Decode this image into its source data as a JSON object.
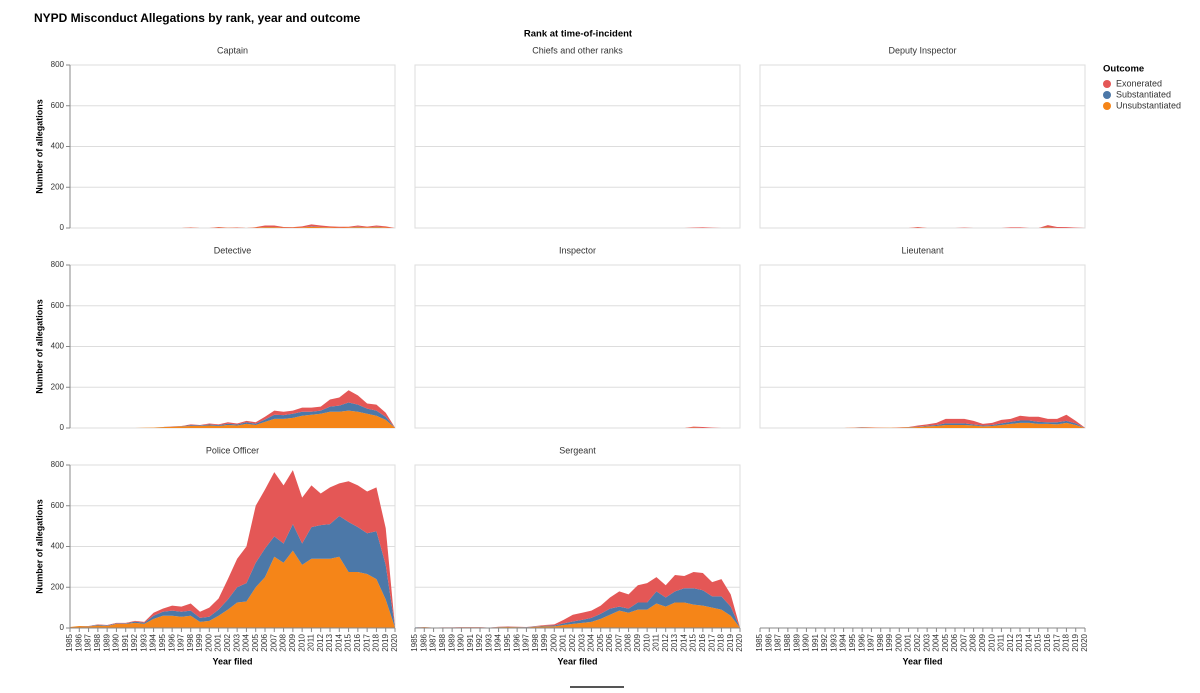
{
  "chart_data": {
    "type": "area",
    "title": "NYPD Misconduct Allegations by rank, year and outcome",
    "facet_title": "Rank at time-of-incident",
    "x_label": "Year filed",
    "y_label": "Number of allegations",
    "legend_title": "Outcome",
    "legend": "right",
    "grid": true,
    "x": [
      1985,
      1986,
      1987,
      1988,
      1989,
      1990,
      1991,
      1992,
      1993,
      1994,
      1995,
      1996,
      1997,
      1998,
      1999,
      2000,
      2001,
      2002,
      2003,
      2004,
      2005,
      2006,
      2007,
      2008,
      2009,
      2010,
      2011,
      2012,
      2013,
      2014,
      2015,
      2016,
      2017,
      2018,
      2019,
      2020
    ],
    "xlim": [
      1985,
      2020
    ],
    "ylim": [
      0,
      800
    ],
    "yticks": [
      0,
      200,
      400,
      600,
      800
    ],
    "facets": [
      {
        "title": "Captain",
        "series": [
          {
            "name": "Exonerated",
            "color": "#e45756",
            "values": [
              0,
              0,
              0,
              0,
              0,
              0,
              0,
              0,
              0,
              0,
              0,
              0,
              0,
              2,
              0,
              0,
              3,
              1,
              2,
              0,
              2,
              7,
              7,
              3,
              2,
              5,
              10,
              7,
              5,
              4,
              3,
              6,
              4,
              6,
              5,
              0
            ]
          },
          {
            "name": "Substantiated",
            "color": "#4c78a8",
            "values": [
              0,
              0,
              0,
              0,
              0,
              0,
              0,
              0,
              0,
              0,
              0,
              0,
              0,
              0,
              0,
              0,
              0,
              0,
              0,
              0,
              0,
              1,
              1,
              0,
              0,
              0,
              2,
              1,
              0,
              0,
              0,
              2,
              0,
              2,
              0,
              0
            ]
          },
          {
            "name": "Unsubstantiated",
            "color": "#f58518",
            "values": [
              0,
              0,
              0,
              0,
              0,
              0,
              0,
              0,
              0,
              0,
              0,
              0,
              0,
              1,
              0,
              0,
              2,
              1,
              1,
              0,
              2,
              4,
              4,
              2,
              2,
              3,
              6,
              4,
              3,
              2,
              3,
              4,
              3,
              4,
              3,
              0
            ]
          }
        ]
      },
      {
        "title": "Chiefs and other ranks",
        "series": [
          {
            "name": "Exonerated",
            "color": "#e45756",
            "values": [
              0,
              0,
              0,
              0,
              0,
              0,
              0,
              0,
              0,
              0,
              0,
              0,
              0,
              0,
              0,
              0,
              0,
              0,
              0,
              0,
              0,
              0,
              0,
              0,
              0,
              0,
              0,
              0,
              0,
              0,
              2,
              3,
              1,
              0,
              0,
              0
            ]
          },
          {
            "name": "Substantiated",
            "color": "#4c78a8",
            "values": [
              0,
              0,
              0,
              0,
              0,
              0,
              0,
              0,
              0,
              0,
              0,
              0,
              0,
              0,
              0,
              0,
              0,
              0,
              0,
              0,
              0,
              0,
              0,
              0,
              0,
              0,
              0,
              0,
              0,
              0,
              0,
              0,
              0,
              0,
              0,
              0
            ]
          },
          {
            "name": "Unsubstantiated",
            "color": "#f58518",
            "values": [
              0,
              0,
              0,
              0,
              0,
              0,
              0,
              0,
              0,
              0,
              0,
              0,
              0,
              0,
              0,
              0,
              0,
              0,
              0,
              0,
              0,
              0,
              0,
              0,
              0,
              0,
              0,
              0,
              0,
              0,
              0,
              0,
              0,
              0,
              0,
              0
            ]
          }
        ]
      },
      {
        "title": "Deputy Inspector",
        "series": [
          {
            "name": "Exonerated",
            "color": "#e45756",
            "values": [
              0,
              0,
              0,
              0,
              0,
              0,
              0,
              0,
              0,
              0,
              0,
              0,
              0,
              0,
              0,
              0,
              0,
              4,
              0,
              0,
              0,
              0,
              2,
              0,
              0,
              0,
              0,
              3,
              3,
              0,
              0,
              10,
              5,
              4,
              2,
              0
            ]
          },
          {
            "name": "Substantiated",
            "color": "#4c78a8",
            "values": [
              0,
              0,
              0,
              0,
              0,
              0,
              0,
              0,
              0,
              0,
              0,
              0,
              0,
              0,
              0,
              0,
              0,
              0,
              0,
              0,
              0,
              0,
              0,
              0,
              0,
              0,
              0,
              0,
              0,
              0,
              0,
              1,
              0,
              0,
              0,
              0
            ]
          },
          {
            "name": "Unsubstantiated",
            "color": "#f58518",
            "values": [
              0,
              0,
              0,
              0,
              0,
              0,
              0,
              0,
              0,
              0,
              0,
              0,
              0,
              0,
              0,
              0,
              0,
              1,
              0,
              0,
              0,
              0,
              0,
              0,
              0,
              0,
              0,
              0,
              0,
              0,
              0,
              3,
              0,
              0,
              0,
              0
            ]
          }
        ]
      },
      {
        "title": "Detective",
        "series": [
          {
            "name": "Exonerated",
            "color": "#e45756",
            "values": [
              0,
              0,
              0,
              0,
              0,
              0,
              0,
              0,
              0,
              0,
              0,
              1,
              1,
              4,
              2,
              5,
              4,
              7,
              5,
              7,
              7,
              13,
              20,
              17,
              15,
              20,
              20,
              20,
              35,
              40,
              60,
              45,
              25,
              30,
              20,
              1
            ]
          },
          {
            "name": "Substantiated",
            "color": "#4c78a8",
            "values": [
              0,
              0,
              0,
              0,
              0,
              0,
              0,
              0,
              0,
              0,
              1,
              1,
              1,
              4,
              3,
              5,
              4,
              6,
              5,
              8,
              6,
              12,
              20,
              18,
              20,
              20,
              15,
              15,
              25,
              30,
              40,
              35,
              25,
              25,
              15,
              0
            ]
          },
          {
            "name": "Unsubstantiated",
            "color": "#f58518",
            "values": [
              0,
              0,
              0,
              0,
              0,
              0,
              0,
              0,
              1,
              2,
              4,
              6,
              8,
              10,
              10,
              12,
              10,
              15,
              12,
              20,
              15,
              30,
              45,
              45,
              50,
              60,
              65,
              70,
              80,
              80,
              85,
              80,
              70,
              60,
              40,
              1
            ]
          }
        ]
      },
      {
        "title": "Inspector",
        "series": [
          {
            "name": "Exonerated",
            "color": "#e45756",
            "values": [
              0,
              0,
              0,
              0,
              0,
              0,
              0,
              0,
              0,
              0,
              0,
              0,
              0,
              0,
              0,
              0,
              0,
              0,
              0,
              0,
              0,
              0,
              0,
              0,
              0,
              0,
              0,
              0,
              0,
              0,
              5,
              5,
              2,
              0,
              0,
              0
            ]
          },
          {
            "name": "Substantiated",
            "color": "#4c78a8",
            "values": [
              0,
              0,
              0,
              0,
              0,
              0,
              0,
              0,
              0,
              0,
              0,
              0,
              0,
              0,
              0,
              0,
              0,
              0,
              0,
              0,
              0,
              0,
              0,
              0,
              0,
              0,
              0,
              0,
              0,
              0,
              0,
              0,
              0,
              0,
              0,
              0
            ]
          },
          {
            "name": "Unsubstantiated",
            "color": "#f58518",
            "values": [
              0,
              0,
              0,
              0,
              0,
              0,
              0,
              0,
              0,
              0,
              0,
              0,
              0,
              0,
              0,
              0,
              0,
              0,
              0,
              0,
              0,
              0,
              0,
              0,
              0,
              0,
              0,
              0,
              0,
              0,
              2,
              0,
              0,
              0,
              0,
              0
            ]
          }
        ]
      },
      {
        "title": "Lieutenant",
        "series": [
          {
            "name": "Exonerated",
            "color": "#e45756",
            "values": [
              0,
              0,
              0,
              0,
              0,
              0,
              0,
              0,
              0,
              0,
              1,
              1,
              1,
              1,
              0,
              1,
              1,
              5,
              7,
              10,
              22,
              22,
              22,
              18,
              8,
              10,
              17,
              15,
              23,
              18,
              25,
              17,
              17,
              30,
              12,
              1
            ]
          },
          {
            "name": "Substantiated",
            "color": "#4c78a8",
            "values": [
              0,
              0,
              0,
              0,
              0,
              0,
              0,
              0,
              0,
              0,
              0,
              1,
              0,
              0,
              0,
              0,
              1,
              2,
              3,
              5,
              8,
              8,
              8,
              5,
              4,
              5,
              8,
              10,
              12,
              12,
              10,
              8,
              10,
              10,
              8,
              0
            ]
          },
          {
            "name": "Unsubstantiated",
            "color": "#f58518",
            "values": [
              0,
              0,
              0,
              0,
              0,
              0,
              0,
              0,
              0,
              0,
              1,
              2,
              2,
              1,
              1,
              2,
              3,
              5,
              8,
              10,
              15,
              15,
              15,
              12,
              8,
              10,
              15,
              20,
              25,
              25,
              20,
              20,
              18,
              25,
              15,
              0
            ]
          }
        ]
      },
      {
        "title": "Police Officer",
        "series": [
          {
            "name": "Exonerated",
            "color": "#e45756",
            "values": [
              0,
              0,
              1,
              2,
              2,
              2,
              2,
              4,
              4,
              15,
              15,
              25,
              25,
              35,
              30,
              45,
              55,
              100,
              140,
              180,
              280,
              290,
              315,
              285,
              265,
              225,
              205,
              155,
              180,
              160,
              200,
              205,
              205,
              215,
              180,
              1
            ]
          },
          {
            "name": "Substantiated",
            "color": "#4c78a8",
            "values": [
              0,
              0,
              1,
              4,
              3,
              3,
              3,
              6,
              6,
              15,
              20,
              25,
              25,
              25,
              20,
              20,
              30,
              50,
              75,
              90,
              120,
              140,
              100,
              95,
              130,
              105,
              155,
              165,
              170,
              200,
              245,
              220,
              200,
              235,
              170,
              2
            ]
          },
          {
            "name": "Unsubstantiated",
            "color": "#f58518",
            "values": [
              5,
              10,
              8,
              12,
              10,
              20,
              20,
              25,
              20,
              45,
              60,
              60,
              55,
              60,
              30,
              35,
              60,
              90,
              125,
              130,
              200,
              250,
              350,
              320,
              380,
              310,
              340,
              340,
              340,
              350,
              275,
              275,
              265,
              240,
              140,
              2
            ]
          }
        ]
      },
      {
        "title": "Sergeant",
        "series": [
          {
            "name": "Exonerated",
            "color": "#e45756",
            "values": [
              0,
              1,
              0,
              1,
              1,
              1,
              1,
              1,
              1,
              1,
              2,
              1,
              1,
              2,
              4,
              6,
              17,
              33,
              35,
              35,
              40,
              55,
              75,
              70,
              85,
              95,
              70,
              60,
              80,
              60,
              80,
              85,
              70,
              85,
              60,
              1
            ]
          },
          {
            "name": "Substantiated",
            "color": "#4c78a8",
            "values": [
              1,
              0,
              0,
              0,
              0,
              0,
              0,
              0,
              0,
              1,
              1,
              1,
              1,
              2,
              3,
              4,
              8,
              12,
              15,
              20,
              25,
              30,
              20,
              20,
              35,
              35,
              60,
              45,
              55,
              70,
              80,
              75,
              55,
              65,
              45,
              0
            ]
          },
          {
            "name": "Unsubstantiated",
            "color": "#f58518",
            "values": [
              2,
              4,
              2,
              2,
              2,
              3,
              3,
              3,
              1,
              4,
              5,
              4,
              3,
              6,
              8,
              8,
              15,
              20,
              25,
              30,
              45,
              65,
              85,
              75,
              90,
              90,
              120,
              105,
              125,
              125,
              115,
              110,
              100,
              90,
              60,
              1
            ]
          }
        ]
      }
    ]
  }
}
